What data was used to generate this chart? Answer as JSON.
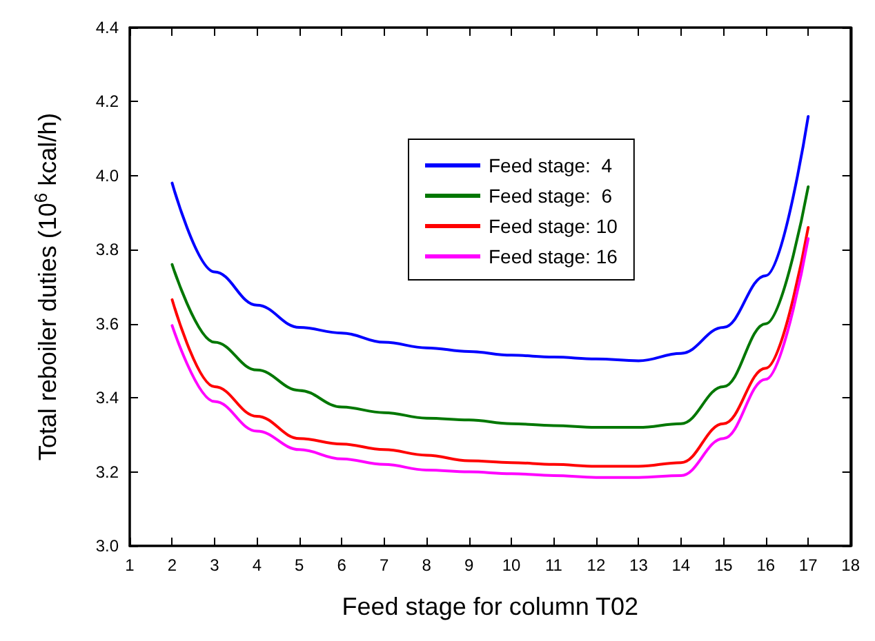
{
  "chart_data": {
    "type": "line",
    "xlabel": "Feed stage for column T02",
    "ylabel": "Total reboiler duties (10$^{6}$ kcal/h)",
    "x": [
      2,
      3,
      4,
      5,
      6,
      7,
      8,
      9,
      10,
      11,
      12,
      13,
      14,
      15,
      16,
      17
    ],
    "series": [
      {
        "name": "Feed stage:  4",
        "color": "#0000ff",
        "values": [
          3.98,
          3.74,
          3.65,
          3.59,
          3.575,
          3.55,
          3.535,
          3.525,
          3.515,
          3.51,
          3.505,
          3.5,
          3.52,
          3.59,
          3.73,
          4.16
        ]
      },
      {
        "name": "Feed stage:  6",
        "color": "#007700",
        "values": [
          3.76,
          3.55,
          3.475,
          3.42,
          3.375,
          3.36,
          3.345,
          3.34,
          3.33,
          3.325,
          3.32,
          3.32,
          3.33,
          3.43,
          3.6,
          3.97
        ]
      },
      {
        "name": "Feed stage: 10",
        "color": "#ff0000",
        "values": [
          3.665,
          3.43,
          3.35,
          3.29,
          3.275,
          3.26,
          3.245,
          3.23,
          3.225,
          3.22,
          3.215,
          3.215,
          3.225,
          3.33,
          3.48,
          3.86
        ]
      },
      {
        "name": "Feed stage: 16",
        "color": "#ff00ff",
        "values": [
          3.595,
          3.39,
          3.31,
          3.26,
          3.235,
          3.22,
          3.205,
          3.2,
          3.195,
          3.19,
          3.185,
          3.185,
          3.19,
          3.29,
          3.45,
          3.83
        ]
      }
    ],
    "xlim": [
      1,
      18
    ],
    "xticks": [
      1,
      2,
      3,
      4,
      5,
      6,
      7,
      8,
      9,
      10,
      11,
      12,
      13,
      14,
      15,
      16,
      17,
      18
    ],
    "ylim": [
      3.0,
      4.4
    ],
    "yticks": [
      {
        "value": 3.0,
        "label": "3.0"
      },
      {
        "value": 3.2,
        "label": "3.2"
      },
      {
        "value": 3.4,
        "label": "3.4"
      },
      {
        "value": 3.6,
        "label": "3.6"
      },
      {
        "value": 3.8,
        "label": "3.8"
      },
      {
        "value": 4.0,
        "label": "4.0"
      },
      {
        "value": 4.2,
        "label": "4.2"
      },
      {
        "value": 4.4,
        "label": "4.4"
      }
    ],
    "grid": false,
    "legend": "top",
    "marker": "none",
    "line_style": "solid"
  }
}
